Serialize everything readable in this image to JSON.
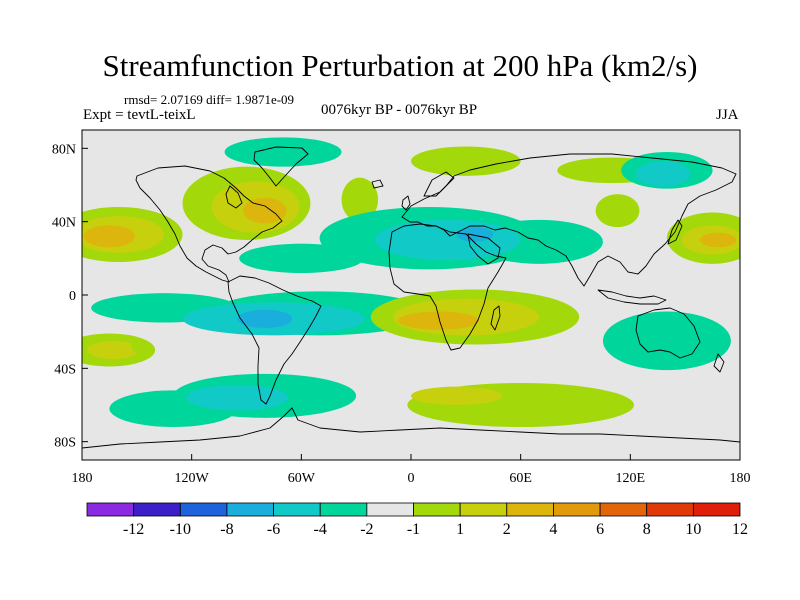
{
  "title": "Streamfunction Perturbation at 200 hPa (km2/s)",
  "stats": "rmsd= 2.07169  diff= 1.9871e-09",
  "experiment": "Expt = tevtL-teixL",
  "period": "0076kyr BP - 0076kyr BP",
  "season": "JJA",
  "map": {
    "projection": "cylindrical equidistant",
    "lon_range": [
      -180,
      180
    ],
    "lat_range": [
      -90,
      90
    ],
    "x_ticks": [
      {
        "lon": -180,
        "label": "180"
      },
      {
        "lon": -120,
        "label": "120W"
      },
      {
        "lon": -60,
        "label": "60W"
      },
      {
        "lon": 0,
        "label": "0"
      },
      {
        "lon": 60,
        "label": "60E"
      },
      {
        "lon": 120,
        "label": "120E"
      },
      {
        "lon": 180,
        "label": "180"
      }
    ],
    "y_ticks": [
      {
        "lat": 80,
        "label": "80N"
      },
      {
        "lat": 40,
        "label": "40N"
      },
      {
        "lat": 0,
        "label": "0"
      },
      {
        "lat": -40,
        "label": "40S"
      },
      {
        "lat": -80,
        "label": "80S"
      }
    ],
    "background_color": "#e6e6e6",
    "regions": [
      {
        "level": "1 to 2",
        "color": "#a3d80b",
        "lon": 60,
        "lat": -60,
        "dlon": 62,
        "dlat": 12,
        "role": "positive band south of Africa and Indian Ocean"
      },
      {
        "level": "2 to 4",
        "color": "#c7d00c",
        "lon": 25,
        "lat": -55,
        "dlon": 25,
        "dlat": 5,
        "role": "positive core south of Africa"
      },
      {
        "level": "-1 to -2",
        "color": "#00d69b",
        "lon": -80,
        "lat": -55,
        "dlon": 50,
        "dlat": 12,
        "role": "negative band southeast Pacific"
      },
      {
        "level": "-1 to -2",
        "color": "#00d69b",
        "lon": -130,
        "lat": -62,
        "dlon": 35,
        "dlat": 10,
        "role": "negative band south Pacific"
      },
      {
        "level": "-2 to -4",
        "color": "#11c9c7",
        "lon": -95,
        "lat": -56,
        "dlon": 28,
        "dlat": 7,
        "role": "negative core southeast Pacific"
      },
      {
        "level": "1 to 2",
        "color": "#a3d80b",
        "lon": -165,
        "lat": -30,
        "dlon": 25,
        "dlat": 9,
        "role": "positive near dateline south"
      },
      {
        "level": "2 to 4",
        "color": "#c7d00c",
        "lon": -163,
        "lat": -30,
        "dlon": 14,
        "dlat": 5,
        "role": "positive core near dateline south"
      },
      {
        "level": "1 to 2",
        "color": "#a3d80b",
        "lon": -160,
        "lat": 33,
        "dlon": 35,
        "dlat": 15,
        "role": "positive band north Pacific"
      },
      {
        "level": "2 to 4",
        "color": "#c7d00c",
        "lon": -160,
        "lat": 33,
        "dlon": 25,
        "dlat": 10,
        "role": "positive north Pacific"
      },
      {
        "level": "4 to 6",
        "color": "#dcb60c",
        "lon": -165,
        "lat": 32,
        "dlon": 14,
        "dlat": 6,
        "role": "positive core north Pacific"
      },
      {
        "level": "1 to 2",
        "color": "#a3d80b",
        "lon": -90,
        "lat": 50,
        "dlon": 35,
        "dlat": 20,
        "role": "positive over North America"
      },
      {
        "level": "2 to 4",
        "color": "#c7d00c",
        "lon": -85,
        "lat": 48,
        "dlon": 24,
        "dlat": 14,
        "role": "positive over North America"
      },
      {
        "level": "4 to 6",
        "color": "#dcb60c",
        "lon": -80,
        "lat": 46,
        "dlon": 12,
        "dlat": 7,
        "role": "positive core eastern North America"
      },
      {
        "level": "-1 to -2",
        "color": "#00d69b",
        "lon": -70,
        "lat": 78,
        "dlon": 32,
        "dlat": 8,
        "role": "negative near Greenland"
      },
      {
        "level": "1 to 2",
        "color": "#a3d80b",
        "lon": -28,
        "lat": 52,
        "dlon": 10,
        "dlat": 12,
        "role": "positive North Atlantic"
      },
      {
        "level": "1 to 2",
        "color": "#a3d80b",
        "lon": 30,
        "lat": 73,
        "dlon": 30,
        "dlat": 8,
        "role": "positive Barents region"
      },
      {
        "level": "1 to 2",
        "color": "#a3d80b",
        "lon": 110,
        "lat": 68,
        "dlon": 30,
        "dlat": 7,
        "role": "positive northern Siberia"
      },
      {
        "level": "-1 to -2",
        "color": "#00d69b",
        "lon": 140,
        "lat": 68,
        "dlon": 25,
        "dlat": 10,
        "role": "negative eastern Siberia"
      },
      {
        "level": "-2 to -4",
        "color": "#11c9c7",
        "lon": 138,
        "lat": 66,
        "dlon": 15,
        "dlat": 7,
        "role": "negative core eastern Siberia"
      },
      {
        "level": "1 to 2",
        "color": "#a3d80b",
        "lon": 113,
        "lat": 46,
        "dlon": 12,
        "dlat": 9,
        "role": "positive Mongolia"
      },
      {
        "level": "1 to 2",
        "color": "#a3d80b",
        "lon": 165,
        "lat": 31,
        "dlon": 25,
        "dlat": 14,
        "role": "positive western Pacific north"
      },
      {
        "level": "2 to 4",
        "color": "#c7d00c",
        "lon": 165,
        "lat": 30,
        "dlon": 17,
        "dlat": 8,
        "role": "positive western Pacific north"
      },
      {
        "level": "4 to 6",
        "color": "#dcb60c",
        "lon": 168,
        "lat": 30,
        "dlon": 10,
        "dlat": 4,
        "role": "positive core western Pacific north"
      },
      {
        "level": "-1 to -2",
        "color": "#00d69b",
        "lon": 10,
        "lat": 31,
        "dlon": 60,
        "dlat": 17,
        "role": "negative band Eurasia and North Africa"
      },
      {
        "level": "-1 to -2",
        "color": "#00d69b",
        "lon": 70,
        "lat": 29,
        "dlon": 35,
        "dlat": 12,
        "role": "negative band central Asia"
      },
      {
        "level": "-2 to -4",
        "color": "#11c9c7",
        "lon": 20,
        "lat": 30,
        "dlon": 40,
        "dlat": 11,
        "role": "negative Mediterranean"
      },
      {
        "level": "-4 to -6",
        "color": "#1aaedc",
        "lon": 35,
        "lat": 33,
        "dlon": 10,
        "dlat": 4,
        "role": "negative core Middle East"
      },
      {
        "level": "-1 to -2",
        "color": "#00d69b",
        "lon": -60,
        "lat": 20,
        "dlon": 34,
        "dlat": 8,
        "role": "negative tropical Atlantic"
      },
      {
        "level": "-1 to -2",
        "color": "#00d69b",
        "lon": -50,
        "lat": -10,
        "dlon": 60,
        "dlat": 12,
        "role": "negative band South America"
      },
      {
        "level": "-1 to -2",
        "color": "#00d69b",
        "lon": -135,
        "lat": -7,
        "dlon": 40,
        "dlat": 8,
        "role": "negative band east Pacific"
      },
      {
        "level": "-2 to -4",
        "color": "#11c9c7",
        "lon": -75,
        "lat": -13,
        "dlon": 50,
        "dlat": 9,
        "role": "negative South America"
      },
      {
        "level": "-4 to -6",
        "color": "#1aaedc",
        "lon": -80,
        "lat": -13,
        "dlon": 15,
        "dlat": 5,
        "role": "negative core off South America"
      },
      {
        "level": "-1 to -2",
        "color": "#00d69b",
        "lon": 140,
        "lat": -25,
        "dlon": 35,
        "dlat": 16,
        "role": "negative Australia"
      },
      {
        "level": "1 to 2",
        "color": "#a3d80b",
        "lon": 35,
        "lat": -12,
        "dlon": 57,
        "dlat": 15,
        "role": "positive band Africa and Indian Ocean"
      },
      {
        "level": "2 to 4",
        "color": "#c7d00c",
        "lon": 30,
        "lat": -12,
        "dlon": 40,
        "dlat": 10,
        "role": "positive Africa"
      },
      {
        "level": "4 to 6",
        "color": "#dcb60c",
        "lon": 15,
        "lat": -14,
        "dlon": 22,
        "dlat": 5,
        "role": "positive core Africa"
      },
      {
        "level": "1 to 2",
        "color": "#a3d80b",
        "lon": -148,
        "lat": -28,
        "dlon": 5,
        "dlat": 4,
        "role": "small positive south Pacific"
      }
    ]
  },
  "colorbar": {
    "colors": [
      "#8a2be2",
      "#3c1fc8",
      "#1e63dc",
      "#1aaedc",
      "#11c9c7",
      "#00d69b",
      "#e6e6e6",
      "#a3d80b",
      "#c7d00c",
      "#dcb60c",
      "#e09a0a",
      "#e2650a",
      "#e03a0a",
      "#e01f0a"
    ],
    "labels": [
      "-12",
      "-10",
      "-8",
      "-6",
      "-4",
      "-2",
      "-1",
      "1",
      "2",
      "4",
      "6",
      "8",
      "10",
      "12"
    ]
  }
}
